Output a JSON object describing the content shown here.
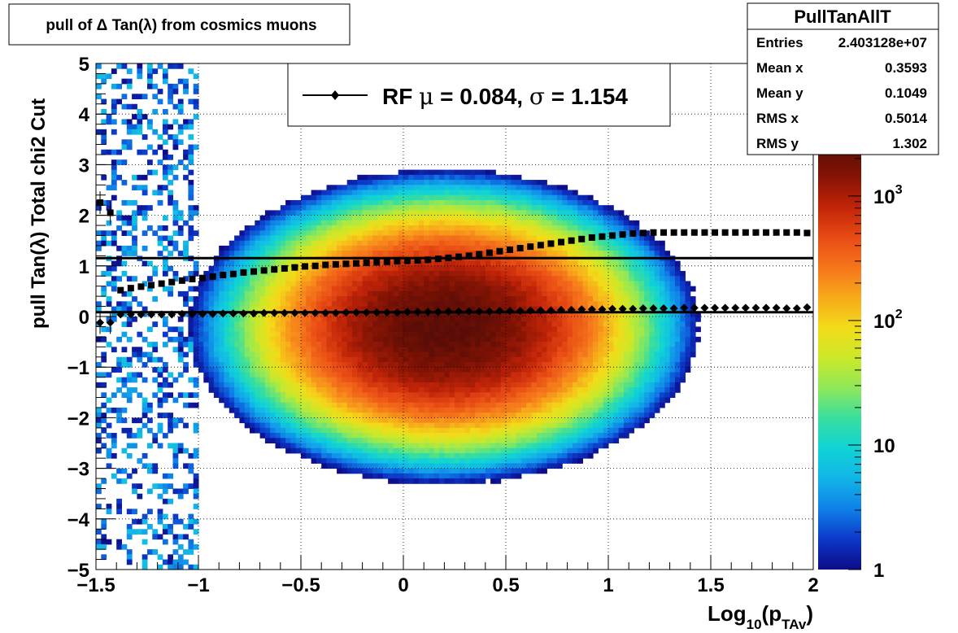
{
  "title": "pull of Δ Tan(λ) from cosmics muons",
  "stats": {
    "name": "PullTanAllT",
    "rows": [
      {
        "label": "Entries",
        "value": "2.403128e+07"
      },
      {
        "label": "Mean x",
        "value": "0.3593"
      },
      {
        "label": "Mean y",
        "value": "0.1049"
      },
      {
        "label": "RMS x",
        "value": "0.5014"
      },
      {
        "label": "RMS y",
        "value": "1.302"
      }
    ]
  },
  "legend": {
    "prefix": "RF ",
    "mu": "μ",
    "mu_value": " =  0.084, ",
    "sigma": "σ",
    "sigma_value": " =   1.154"
  },
  "chart_data": {
    "type": "heatmap",
    "title": "pull of Δ Tan(λ) from cosmics muons",
    "xlabel": "Log10(pTAv)",
    "xlabel_parts": {
      "main": "Log",
      "sub1": "10",
      "paren_open": "(p",
      "sub2": "TAv",
      "paren_close": ")"
    },
    "ylabel": "pull Tan(λ)  Total chi2 Cut",
    "xlim": [
      -1.5,
      2.0
    ],
    "ylim": [
      -5,
      5
    ],
    "x_ticks": [
      {
        "value": -1.5,
        "label": "−1.5"
      },
      {
        "value": -1.0,
        "label": "−1"
      },
      {
        "value": -0.5,
        "label": "−0.5"
      },
      {
        "value": 0.0,
        "label": "0"
      },
      {
        "value": 0.5,
        "label": "0.5"
      },
      {
        "value": 1.0,
        "label": "1"
      },
      {
        "value": 1.5,
        "label": "1.5"
      },
      {
        "value": 2.0,
        "label": "2"
      }
    ],
    "y_ticks": [
      {
        "value": 5,
        "label": "5"
      },
      {
        "value": 4,
        "label": "4"
      },
      {
        "value": 3,
        "label": "3"
      },
      {
        "value": 2,
        "label": "2"
      },
      {
        "value": 1,
        "label": "1"
      },
      {
        "value": 0,
        "label": "0"
      },
      {
        "value": -1,
        "label": "−1"
      },
      {
        "value": -2,
        "label": "−2"
      },
      {
        "value": -3,
        "label": "−3"
      },
      {
        "value": -4,
        "label": "−4"
      },
      {
        "value": -5,
        "label": "−5"
      }
    ],
    "colorbar": {
      "scale": "log",
      "range": [
        1,
        2500
      ],
      "labels": [
        {
          "value": 1,
          "base": "1",
          "exp": ""
        },
        {
          "value": 10,
          "base": "10",
          "exp": ""
        },
        {
          "value": 100,
          "base": "10",
          "exp": "2"
        },
        {
          "value": 1000,
          "base": "10",
          "exp": "3"
        }
      ],
      "palette": [
        "#0d0b87",
        "#0c38c8",
        "#0f80e8",
        "#12b4e8",
        "#10d3d6",
        "#38de9e",
        "#8ee85a",
        "#cbe829",
        "#f2dc19",
        "#f8a91a",
        "#f5751b",
        "#e84b14",
        "#c02408",
        "#851405",
        "#5a0d06"
      ]
    },
    "distribution": {
      "peak_x": 0.2,
      "peak_y": -0.2,
      "peak_counts": 2500
    },
    "grid": true,
    "series": [
      {
        "marker": "diamond",
        "x": [
          -1.48,
          -1.43,
          -1.38,
          -1.33,
          -1.28,
          -1.23,
          -1.18,
          -1.13,
          -1.08,
          -1.03,
          -0.98,
          -0.93,
          -0.88,
          -0.83,
          -0.78,
          -0.73,
          -0.68,
          -0.63,
          -0.58,
          -0.53,
          -0.48,
          -0.43,
          -0.38,
          -0.33,
          -0.28,
          -0.23,
          -0.18,
          -0.13,
          -0.08,
          -0.03,
          0.02,
          0.07,
          0.12,
          0.17,
          0.22,
          0.27,
          0.32,
          0.37,
          0.42,
          0.47,
          0.52,
          0.57,
          0.62,
          0.67,
          0.72,
          0.77,
          0.82,
          0.87,
          0.92,
          0.97,
          1.02,
          1.07,
          1.12,
          1.17,
          1.22,
          1.27,
          1.32,
          1.37,
          1.42,
          1.47,
          1.52,
          1.57,
          1.62,
          1.67,
          1.72,
          1.77,
          1.82,
          1.87,
          1.92,
          1.97
        ],
        "y": [
          -0.12,
          -0.12,
          0.04,
          0.04,
          0.04,
          0.04,
          0.04,
          0.04,
          0.05,
          0.05,
          0.05,
          0.05,
          0.06,
          0.06,
          0.06,
          0.06,
          0.07,
          0.07,
          0.07,
          0.07,
          0.07,
          0.07,
          0.07,
          0.07,
          0.08,
          0.08,
          0.08,
          0.08,
          0.08,
          0.08,
          0.09,
          0.09,
          0.09,
          0.09,
          0.1,
          0.1,
          0.1,
          0.1,
          0.1,
          0.11,
          0.11,
          0.11,
          0.12,
          0.12,
          0.12,
          0.13,
          0.13,
          0.14,
          0.14,
          0.14,
          0.15,
          0.15,
          0.15,
          0.16,
          0.16,
          0.16,
          0.16,
          0.17,
          0.17,
          0.17,
          0.17,
          0.17,
          0.17,
          0.17,
          0.17,
          0.17,
          0.17,
          0.16,
          0.16,
          0.18
        ]
      },
      {
        "marker": "square",
        "x": [
          -1.48,
          -1.43,
          -1.38,
          -1.33,
          -1.28,
          -1.23,
          -1.18,
          -1.13,
          -1.08,
          -1.03,
          -0.98,
          -0.93,
          -0.88,
          -0.83,
          -0.78,
          -0.73,
          -0.68,
          -0.63,
          -0.58,
          -0.53,
          -0.48,
          -0.43,
          -0.38,
          -0.33,
          -0.28,
          -0.23,
          -0.18,
          -0.13,
          -0.08,
          -0.03,
          0.02,
          0.07,
          0.12,
          0.17,
          0.22,
          0.27,
          0.32,
          0.37,
          0.42,
          0.47,
          0.52,
          0.57,
          0.62,
          0.67,
          0.72,
          0.77,
          0.82,
          0.87,
          0.92,
          0.97,
          1.02,
          1.07,
          1.12,
          1.17,
          1.22,
          1.27,
          1.32,
          1.37,
          1.42,
          1.47,
          1.52,
          1.57,
          1.62,
          1.67,
          1.72,
          1.77,
          1.82,
          1.87,
          1.92,
          1.97
        ],
        "y": [
          2.25,
          2.05,
          0.52,
          0.56,
          0.59,
          0.62,
          0.65,
          0.68,
          0.71,
          0.74,
          0.76,
          0.79,
          0.82,
          0.84,
          0.87,
          0.89,
          0.91,
          0.93,
          0.95,
          0.97,
          0.99,
          1.0,
          1.02,
          1.03,
          1.04,
          1.05,
          1.06,
          1.07,
          1.08,
          1.09,
          1.1,
          1.11,
          1.12,
          1.14,
          1.16,
          1.18,
          1.2,
          1.23,
          1.26,
          1.29,
          1.32,
          1.35,
          1.38,
          1.41,
          1.44,
          1.47,
          1.5,
          1.53,
          1.56,
          1.58,
          1.6,
          1.62,
          1.64,
          1.65,
          1.66,
          1.66,
          1.66,
          1.66,
          1.66,
          1.66,
          1.66,
          1.66,
          1.66,
          1.66,
          1.66,
          1.66,
          1.66,
          1.66,
          1.66,
          1.65
        ]
      }
    ],
    "fit_lines": [
      {
        "y": 0.084,
        "x_range": [
          -1.5,
          2.0
        ]
      },
      {
        "y": 1.154,
        "x_range": [
          -1.5,
          2.0
        ]
      }
    ]
  }
}
